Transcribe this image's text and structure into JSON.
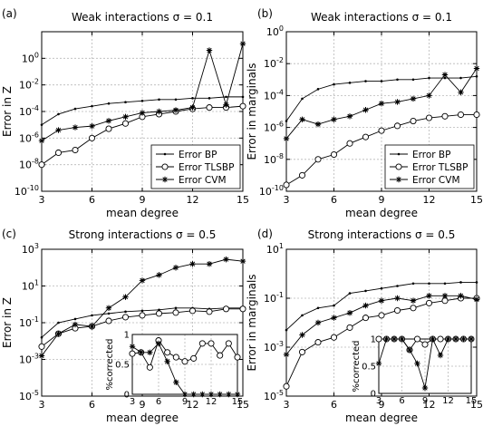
{
  "chart_data": [
    {
      "id": "a",
      "type": "line",
      "panel_label": "(a)",
      "title": "Weak interactions σ = 0.1",
      "xlabel": "mean degree",
      "ylabel": "Error in Z",
      "xlim": [
        3,
        15
      ],
      "ylim_log10": [
        -10,
        2
      ],
      "yscale": "log",
      "grid": true,
      "xticks": [
        3,
        6,
        9,
        12,
        15
      ],
      "yticks": [
        "10^-10",
        "10^-8",
        "10^-6",
        "10^-4",
        "10^-2",
        "10^0"
      ],
      "legend": {
        "placement": "bottom-right",
        "entries": [
          "Error BP",
          "Error TLSBP",
          "Error CVM"
        ]
      },
      "x": [
        3,
        4,
        5,
        6,
        7,
        8,
        9,
        10,
        11,
        12,
        13,
        14,
        15
      ],
      "series": [
        {
          "name": "Error BP",
          "marker": "dot",
          "log10_values": [
            -5.0,
            -4.2,
            -3.8,
            -3.6,
            -3.4,
            -3.3,
            -3.2,
            -3.1,
            -3.1,
            -3.0,
            -3.0,
            -2.9,
            -2.9
          ]
        },
        {
          "name": "Error TLSBP",
          "marker": "circle",
          "log10_values": [
            -8.0,
            -7.1,
            -6.9,
            -6.0,
            -5.3,
            -4.9,
            -4.4,
            -4.2,
            -4.0,
            -3.8,
            -3.7,
            -3.7,
            -3.6
          ]
        },
        {
          "name": "Error CVM",
          "marker": "star",
          "log10_values": [
            -6.2,
            -5.4,
            -5.2,
            -5.1,
            -4.7,
            -4.4,
            -4.1,
            -4.0,
            -3.9,
            -3.7,
            0.6,
            -3.5,
            1.1
          ]
        }
      ]
    },
    {
      "id": "b",
      "type": "line",
      "panel_label": "(b)",
      "title": "Weak interactions σ = 0.1",
      "xlabel": "mean degree",
      "ylabel": "Error in marginals",
      "xlim": [
        3,
        15
      ],
      "ylim_log10": [
        -10,
        0
      ],
      "yscale": "log",
      "grid": true,
      "xticks": [
        3,
        6,
        9,
        12,
        15
      ],
      "yticks": [
        "10^-10",
        "10^-8",
        "10^-6",
        "10^-4",
        "10^-2",
        "10^0"
      ],
      "legend": {
        "placement": "bottom-right",
        "entries": [
          "Error BP",
          "Error TLSBP",
          "Error CVM"
        ]
      },
      "x": [
        3,
        4,
        5,
        6,
        7,
        8,
        9,
        10,
        11,
        12,
        13,
        14,
        15
      ],
      "series": [
        {
          "name": "Error BP",
          "marker": "dot",
          "log10_values": [
            -5.6,
            -4.2,
            -3.6,
            -3.3,
            -3.2,
            -3.1,
            -3.1,
            -3.0,
            -3.0,
            -2.9,
            -2.9,
            -2.9,
            -2.8
          ]
        },
        {
          "name": "Error TLSBP",
          "marker": "circle",
          "log10_values": [
            -9.6,
            -9.0,
            -8.0,
            -7.7,
            -7.0,
            -6.6,
            -6.2,
            -5.9,
            -5.6,
            -5.4,
            -5.3,
            -5.2,
            -5.2
          ]
        },
        {
          "name": "Error CVM",
          "marker": "star",
          "log10_values": [
            -6.7,
            -5.5,
            -5.8,
            -5.5,
            -5.3,
            -4.9,
            -4.5,
            -4.4,
            -4.2,
            -4.0,
            -2.7,
            -3.8,
            -2.3
          ]
        }
      ]
    },
    {
      "id": "c",
      "type": "line",
      "panel_label": "(c)",
      "title": "Strong interactions σ = 0.5",
      "xlabel": "mean degree",
      "ylabel": "Error in Z",
      "xlim": [
        3,
        15
      ],
      "ylim_log10": [
        -5,
        3
      ],
      "yscale": "log",
      "grid": true,
      "xticks": [
        3,
        6,
        9,
        12,
        15
      ],
      "yticks": [
        "10^-5",
        "10^-3",
        "10^-1",
        "10^1",
        "10^3"
      ],
      "x": [
        3,
        4,
        5,
        6,
        7,
        8,
        9,
        10,
        11,
        12,
        13,
        14,
        15
      ],
      "series": [
        {
          "name": "Error BP",
          "marker": "dot",
          "log10_values": [
            -1.8,
            -1.0,
            -0.8,
            -0.6,
            -0.5,
            -0.4,
            -0.35,
            -0.3,
            -0.2,
            -0.2,
            -0.25,
            -0.2,
            -0.2
          ]
        },
        {
          "name": "Error TLSBP",
          "marker": "circle",
          "log10_values": [
            -2.3,
            -1.6,
            -1.3,
            -1.2,
            -0.9,
            -0.7,
            -0.6,
            -0.5,
            -0.45,
            -0.35,
            -0.4,
            -0.25,
            -0.25
          ]
        },
        {
          "name": "Error CVM",
          "marker": "star",
          "log10_values": [
            -2.8,
            -1.6,
            -1.1,
            -1.2,
            -0.2,
            0.4,
            1.3,
            1.6,
            2.0,
            2.2,
            2.2,
            2.45,
            2.35
          ]
        }
      ],
      "inset": {
        "ylabel": "%corrected",
        "xlim": [
          3,
          15
        ],
        "ylim": [
          0,
          1
        ],
        "xticks": [
          3,
          6,
          9,
          12,
          15
        ],
        "yticks": [
          0,
          0.5,
          1
        ],
        "grid": true,
        "x": [
          3,
          4,
          5,
          6,
          7,
          8,
          9,
          10,
          11,
          12,
          13,
          14,
          15
        ],
        "series": [
          {
            "name": "Error TLSBP",
            "marker": "circle",
            "values": [
              0.68,
              0.7,
              0.45,
              0.9,
              0.7,
              0.62,
              0.55,
              0.6,
              0.85,
              0.85,
              0.65,
              0.85,
              0.62
            ]
          },
          {
            "name": "Error CVM",
            "marker": "star",
            "values": [
              0.8,
              0.7,
              0.7,
              0.85,
              0.55,
              0.2,
              0.0,
              0.0,
              0.0,
              0.0,
              0.0,
              0.0,
              0.0
            ]
          }
        ]
      }
    },
    {
      "id": "d",
      "type": "line",
      "panel_label": "(d)",
      "title": "Strong interactions σ = 0.5",
      "xlabel": "mean degree",
      "ylabel": "Error in marginals",
      "xlim": [
        3,
        15
      ],
      "ylim_log10": [
        -5,
        1
      ],
      "yscale": "log",
      "grid": true,
      "xticks": [
        3,
        6,
        9,
        12,
        15
      ],
      "yticks": [
        "10^-5",
        "10^-3",
        "10^-1",
        "10^1"
      ],
      "x": [
        3,
        4,
        5,
        6,
        7,
        8,
        9,
        10,
        11,
        12,
        13,
        14,
        15
      ],
      "series": [
        {
          "name": "Error BP",
          "marker": "dot",
          "log10_values": [
            -2.3,
            -1.7,
            -1.4,
            -1.3,
            -0.8,
            -0.7,
            -0.6,
            -0.5,
            -0.4,
            -0.4,
            -0.4,
            -0.35,
            -0.35
          ]
        },
        {
          "name": "Error TLSBP",
          "marker": "circle",
          "log10_values": [
            -4.6,
            -3.2,
            -2.8,
            -2.6,
            -2.2,
            -1.8,
            -1.7,
            -1.5,
            -1.4,
            -1.2,
            -1.1,
            -1.0,
            -1.0
          ]
        },
        {
          "name": "Error CVM",
          "marker": "star",
          "log10_values": [
            -3.3,
            -2.5,
            -2.0,
            -1.8,
            -1.6,
            -1.3,
            -1.1,
            -1.0,
            -1.1,
            -0.9,
            -0.9,
            -0.9,
            -1.05
          ]
        }
      ],
      "inset": {
        "ylabel": "%corrected",
        "xlim": [
          3,
          15
        ],
        "ylim": [
          0,
          1
        ],
        "xticks": [
          3,
          6,
          9,
          12,
          15
        ],
        "yticks": [
          0,
          0.5,
          1
        ],
        "grid": true,
        "x": [
          3,
          4,
          5,
          6,
          7,
          8,
          9,
          10,
          11,
          12,
          13,
          14,
          15
        ],
        "series": [
          {
            "name": "Error TLSBP",
            "marker": "circle",
            "values": [
              1.0,
              1.0,
              1.0,
              1.0,
              0.8,
              1.0,
              0.9,
              1.0,
              1.0,
              1.0,
              1.0,
              1.0,
              1.0
            ]
          },
          {
            "name": "Error CVM",
            "marker": "star",
            "values": [
              0.55,
              1.0,
              1.0,
              1.0,
              0.8,
              0.55,
              0.1,
              1.0,
              0.7,
              1.0,
              1.0,
              1.0,
              1.0
            ]
          }
        ]
      }
    }
  ]
}
